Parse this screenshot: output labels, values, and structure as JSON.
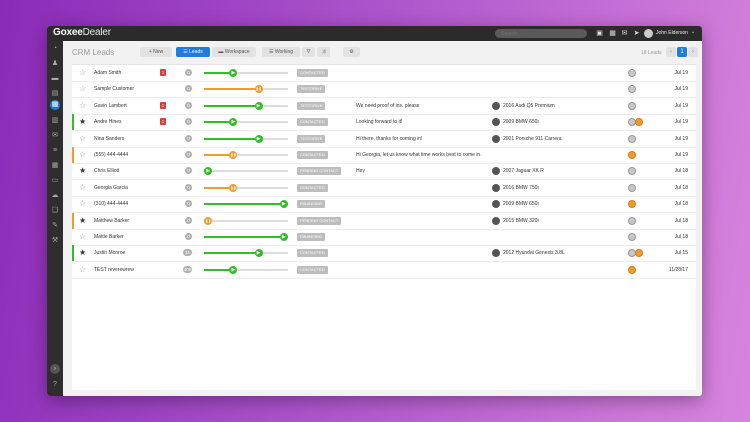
{
  "app": {
    "logo_bold": "Goxee",
    "logo_rest": "Dealer",
    "search_placeholder": "Search...",
    "user_name": "John Elderson"
  },
  "page": {
    "title": "CRM Leads",
    "toolbar": {
      "new_label": "New",
      "leads_label": "Leads",
      "workspace_label": "Workspace",
      "working_label": "Working"
    },
    "leads_count": "18 Leads",
    "pagination": {
      "current": "1"
    }
  },
  "colors": {
    "green": "#2fbf24",
    "orange": "#f39a2c",
    "accent_blue": "#1e7be0"
  },
  "leads": [
    {
      "starred": false,
      "name": "Adam Smith",
      "red_badge": "1",
      "count": "0",
      "progress": 0.35,
      "color": "green",
      "status": "CONTACTED",
      "note": "",
      "car": "",
      "avatars": [
        "gray"
      ],
      "date": "Jul 19",
      "accent": ""
    },
    {
      "starred": false,
      "name": "Sample Customer",
      "red_badge": "",
      "count": "0",
      "progress": 0.65,
      "color": "orange",
      "status": "TESTDRIVE",
      "note": "",
      "car": "",
      "avatars": [
        "gray"
      ],
      "date": "Jul 19",
      "accent": ""
    },
    {
      "starred": false,
      "name": "Gavin Lambert",
      "red_badge": "1",
      "count": "0",
      "progress": 0.65,
      "color": "green",
      "status": "TESTDRIVE",
      "note": "We need proof of ins. please",
      "car": "2016 Audi Q5 Premium",
      "avatars": [
        "gray"
      ],
      "date": "Jul 19",
      "accent": ""
    },
    {
      "starred": true,
      "name": "Andre Hines",
      "red_badge": "1",
      "count": "0",
      "progress": 0.35,
      "color": "green",
      "status": "CONTACTED",
      "note": "Looking forward to it!",
      "car": "2009 BMW 650i",
      "avatars": [
        "gray",
        "orange"
      ],
      "date": "Jul 19",
      "accent": "green"
    },
    {
      "starred": false,
      "name": "Nina Sanders",
      "red_badge": "",
      "count": "0",
      "progress": 0.65,
      "color": "green",
      "status": "TESTDRIVE",
      "note": "Hi there, thanks for coming in!",
      "car": "2001 Porsche 911 Carrera",
      "avatars": [
        "gray"
      ],
      "date": "Jul 19",
      "accent": ""
    },
    {
      "starred": false,
      "name": "(555) 444-4444",
      "red_badge": "",
      "count": "0",
      "progress": 0.35,
      "color": "orange",
      "status": "CONTACTED",
      "note": "Hi Georgia, let us know what time works best to come in.",
      "car": "",
      "avatars": [
        "orange"
      ],
      "date": "Jul 19",
      "accent": "orange"
    },
    {
      "starred": true,
      "name": "Chris Elliott",
      "red_badge": "",
      "count": "0",
      "progress": 0.05,
      "color": "green",
      "status": "PENDING CONTACT",
      "note": "Hey",
      "car": "2007 Jaguar XK R",
      "avatars": [
        "gray"
      ],
      "date": "Jul 18",
      "accent": ""
    },
    {
      "starred": false,
      "name": "Georgia Garcia",
      "red_badge": "",
      "count": "0",
      "progress": 0.35,
      "color": "orange",
      "status": "CONTACTED",
      "note": "",
      "car": "2016 BMW 750i",
      "avatars": [
        "gray"
      ],
      "date": "Jul 18",
      "accent": ""
    },
    {
      "starred": false,
      "name": "(310) 444-4444",
      "red_badge": "",
      "count": "0",
      "progress": 0.95,
      "color": "green",
      "status": "FINANCING",
      "note": "",
      "car": "2009 BMW 650i",
      "avatars": [
        "orange"
      ],
      "date": "Jul 18",
      "accent": ""
    },
    {
      "starred": true,
      "name": "Matthew Barker",
      "red_badge": "",
      "count": "0",
      "progress": 0.05,
      "color": "orange",
      "status": "PENDING CONTACT",
      "note": "",
      "car": "2015 BMW 320i",
      "avatars": [
        "gray"
      ],
      "date": "Jul 18",
      "accent": "orange"
    },
    {
      "starred": false,
      "name": "Mattie Barker",
      "red_badge": "",
      "count": "0",
      "progress": 0.95,
      "color": "green",
      "status": "FINANCING",
      "note": "",
      "car": "",
      "avatars": [
        "gray"
      ],
      "date": "Jul 18",
      "accent": ""
    },
    {
      "starred": true,
      "name": "Justin Monroe",
      "red_badge": "",
      "count": "11",
      "progress": 0.65,
      "color": "green",
      "status": "CONTACTED",
      "note": "",
      "car": "2012 Hyundai Genesis 3.8L",
      "avatars": [
        "gray",
        "orange"
      ],
      "date": "Jul 15",
      "accent": "green"
    },
    {
      "starred": false,
      "name": "TEST reverewrew",
      "red_badge": "",
      "count": "408",
      "progress": 0.35,
      "color": "green",
      "status": "CONTACTED",
      "note": "",
      "car": "",
      "avatars": [
        "orange"
      ],
      "date": "11/28/17",
      "accent": ""
    }
  ]
}
